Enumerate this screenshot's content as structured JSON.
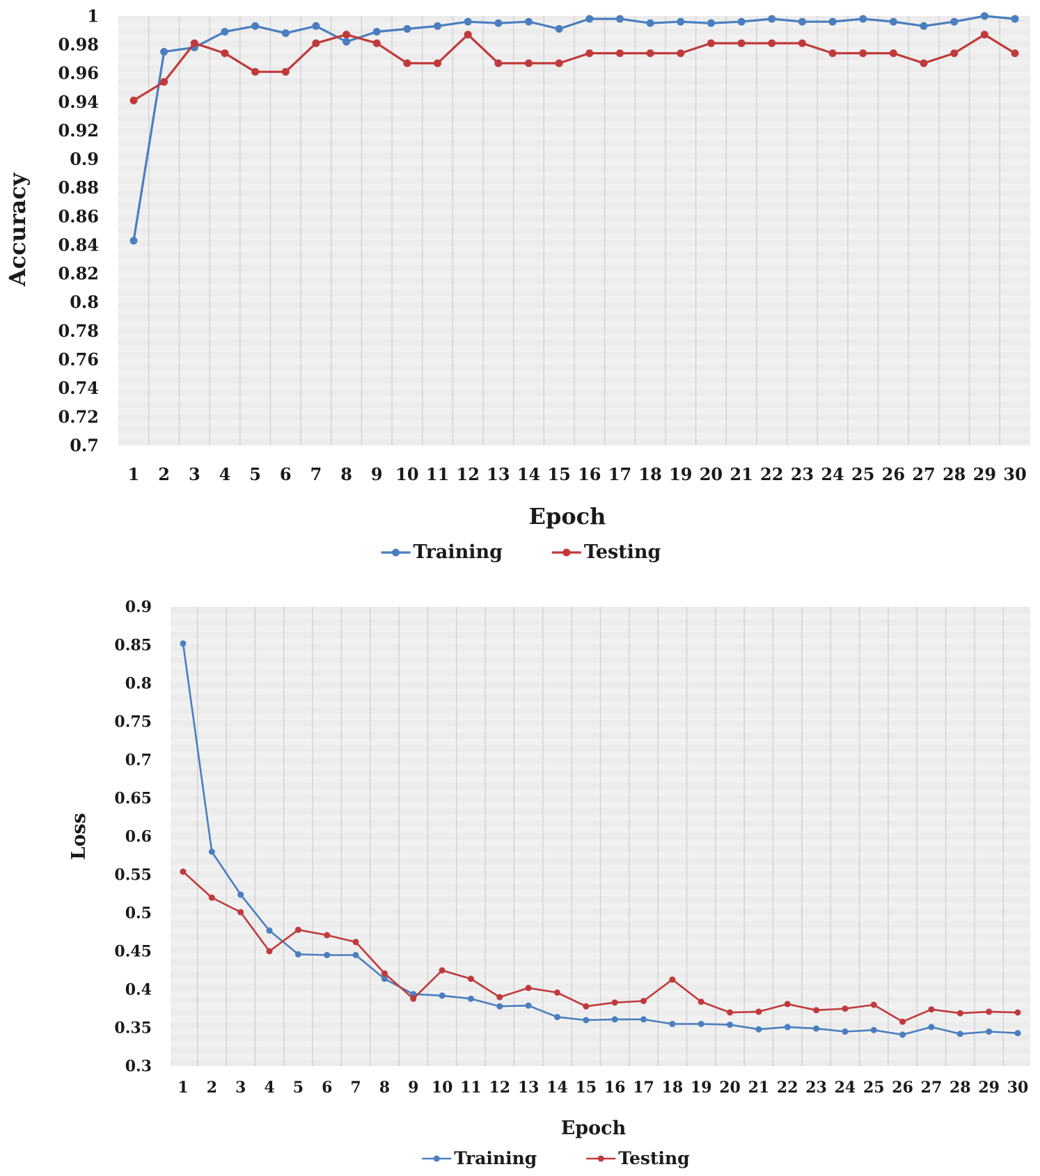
{
  "chart_data": [
    {
      "type": "line",
      "xlabel": "Epoch",
      "ylabel": "Accuracy",
      "ylim": [
        0.7,
        1.0
      ],
      "ytick_step": 0.02,
      "yticks": [
        "1",
        "0.98",
        "0.96",
        "0.94",
        "0.92",
        "0.9",
        "0.88",
        "0.86",
        "0.84",
        "0.82",
        "0.8",
        "0.78",
        "0.76",
        "0.74",
        "0.72",
        "0.7"
      ],
      "categories": [
        "1",
        "2",
        "3",
        "4",
        "5",
        "6",
        "7",
        "8",
        "9",
        "10",
        "11",
        "12",
        "13",
        "14",
        "15",
        "16",
        "17",
        "18",
        "19",
        "20",
        "21",
        "22",
        "23",
        "24",
        "25",
        "26",
        "27",
        "28",
        "29",
        "30"
      ],
      "grid": true,
      "legend_position": "bottom-center",
      "series": [
        {
          "name": "Training",
          "color": "#4a7ebf",
          "values": [
            0.843,
            0.975,
            0.978,
            0.989,
            0.993,
            0.988,
            0.993,
            0.982,
            0.989,
            0.991,
            0.993,
            0.996,
            0.995,
            0.996,
            0.991,
            0.998,
            0.998,
            0.995,
            0.996,
            0.995,
            0.996,
            0.998,
            0.996,
            0.996,
            0.998,
            0.996,
            0.993,
            0.996,
            1.0,
            0.998
          ]
        },
        {
          "name": "Testing",
          "color": "#c0393b",
          "values": [
            0.941,
            0.954,
            0.981,
            0.974,
            0.961,
            0.961,
            0.981,
            0.987,
            0.981,
            0.967,
            0.967,
            0.987,
            0.967,
            0.967,
            0.967,
            0.974,
            0.974,
            0.974,
            0.974,
            0.981,
            0.981,
            0.981,
            0.981,
            0.974,
            0.974,
            0.974,
            0.967,
            0.974,
            0.987,
            0.974
          ]
        }
      ]
    },
    {
      "type": "line",
      "xlabel": "Epoch",
      "ylabel": "Loss",
      "ylim": [
        0.3,
        0.9
      ],
      "ytick_step": 0.05,
      "yticks": [
        "0.9",
        "0.85",
        "0.8",
        "0.75",
        "0.7",
        "0.65",
        "0.6",
        "0.55",
        "0.5",
        "0.45",
        "0.4",
        "0.35",
        "0.3"
      ],
      "categories": [
        "1",
        "2",
        "3",
        "4",
        "5",
        "6",
        "7",
        "8",
        "9",
        "10",
        "11",
        "12",
        "13",
        "14",
        "15",
        "16",
        "17",
        "18",
        "19",
        "20",
        "21",
        "22",
        "23",
        "24",
        "25",
        "26",
        "27",
        "28",
        "29",
        "30"
      ],
      "grid": true,
      "legend_position": "bottom-center",
      "series": [
        {
          "name": "Training",
          "color": "#4a7ebf",
          "values": [
            0.852,
            0.58,
            0.524,
            0.477,
            0.446,
            0.445,
            0.445,
            0.414,
            0.394,
            0.392,
            0.388,
            0.378,
            0.379,
            0.364,
            0.36,
            0.361,
            0.361,
            0.355,
            0.355,
            0.354,
            0.348,
            0.351,
            0.349,
            0.345,
            0.347,
            0.341,
            0.351,
            0.342,
            0.345,
            0.343
          ]
        },
        {
          "name": "Testing",
          "color": "#c0393b",
          "values": [
            0.554,
            0.52,
            0.501,
            0.45,
            0.478,
            0.471,
            0.462,
            0.421,
            0.388,
            0.425,
            0.414,
            0.39,
            0.402,
            0.396,
            0.378,
            0.383,
            0.385,
            0.413,
            0.384,
            0.37,
            0.371,
            0.381,
            0.373,
            0.375,
            0.38,
            0.358,
            0.374,
            0.369,
            0.371,
            0.37
          ]
        }
      ]
    }
  ]
}
